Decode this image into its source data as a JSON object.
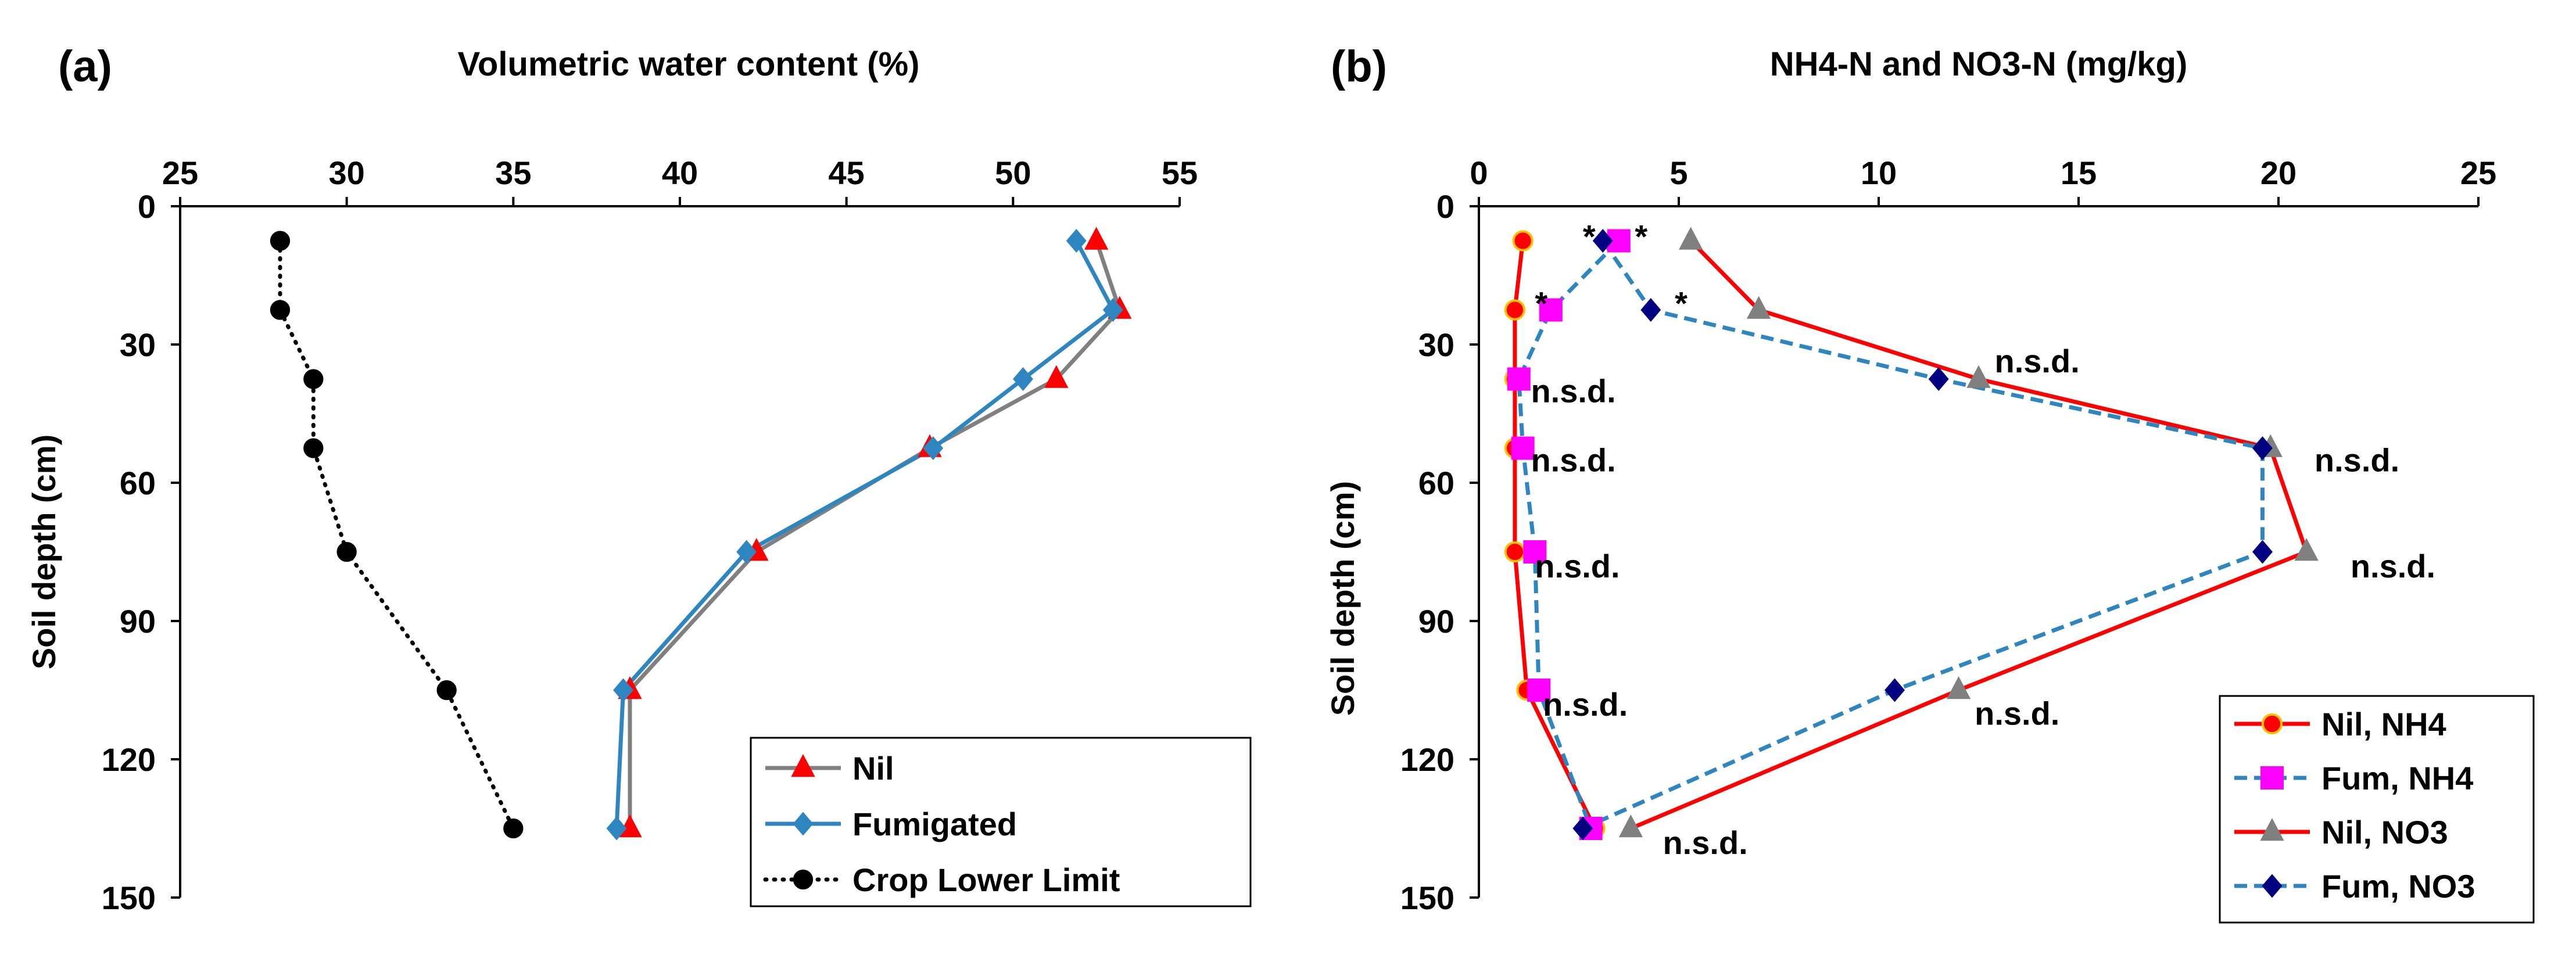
{
  "chart_data": [
    {
      "type": "line",
      "panel_label": "(a)",
      "title": "Volumetric water content (%)",
      "xlabel": "Volumetric water content (%)",
      "ylabel": "Soil depth (cm)",
      "xlim": [
        25,
        55
      ],
      "ylim": [
        0,
        150
      ],
      "x_axis_position": "top",
      "y_inverted": true,
      "xticks": [
        25,
        30,
        35,
        40,
        45,
        50,
        55
      ],
      "yticks": [
        0,
        30,
        60,
        90,
        120,
        150
      ],
      "grid": false,
      "legend_position": "bottom-right",
      "series": [
        {
          "name": "Nil",
          "color": "#808080",
          "marker_color": "#ff0000",
          "marker": "triangle",
          "line": "solid",
          "x": [
            52.5,
            53.2,
            51.3,
            47.5,
            42.3,
            38.5,
            38.5
          ],
          "y": [
            7.5,
            22.5,
            37.5,
            52.5,
            75,
            105,
            135
          ]
        },
        {
          "name": "Fumigated",
          "color": "#2e86c1",
          "marker_color": "#2e86c1",
          "marker": "diamond",
          "line": "solid",
          "x": [
            51.9,
            53.0,
            50.3,
            47.6,
            42.0,
            38.3,
            38.1
          ],
          "y": [
            7.5,
            22.5,
            37.5,
            52.5,
            75,
            105,
            135
          ]
        },
        {
          "name": "Crop Lower Limit",
          "color": "#000000",
          "marker_color": "#000000",
          "marker": "circle",
          "line": "dotted",
          "x": [
            28.0,
            28.0,
            29.0,
            29.0,
            30.0,
            33.0,
            35.0
          ],
          "y": [
            7.5,
            22.5,
            37.5,
            52.5,
            75,
            105,
            135
          ]
        }
      ]
    },
    {
      "type": "line",
      "panel_label": "(b)",
      "title": "NH4-N and NO3-N (mg/kg)",
      "xlabel": "NH4-N and NO3-N (mg/kg)",
      "ylabel": "Soil depth (cm)",
      "xlim": [
        0,
        25
      ],
      "ylim": [
        0,
        150
      ],
      "x_axis_position": "top",
      "y_inverted": true,
      "xticks": [
        0,
        5,
        10,
        15,
        20,
        25
      ],
      "yticks": [
        0,
        30,
        60,
        90,
        120,
        150
      ],
      "grid": false,
      "legend_position": "bottom-right",
      "series": [
        {
          "name": "Nil, NH4",
          "color": "#ff0000",
          "marker_color": "#ff0000",
          "marker_edge": "#ffc000",
          "marker": "circle",
          "line": "solid",
          "x": [
            1.1,
            0.9,
            0.9,
            0.9,
            0.9,
            1.2,
            2.9
          ],
          "y": [
            7.5,
            22.5,
            37.5,
            52.5,
            75,
            105,
            135
          ]
        },
        {
          "name": "Fum, NH4",
          "color": "#2e86c1",
          "marker_color": "#ff00ff",
          "marker": "square",
          "line": "dashed",
          "x": [
            3.5,
            1.8,
            1.0,
            1.1,
            1.4,
            1.5,
            2.8
          ],
          "y": [
            7.5,
            22.5,
            37.5,
            52.5,
            75,
            105,
            135
          ]
        },
        {
          "name": "Nil, NO3",
          "color": "#ff0000",
          "marker_color": "#808080",
          "marker": "triangle",
          "line": "solid",
          "x": [
            5.3,
            7.0,
            12.5,
            19.8,
            20.7,
            12.0,
            3.8
          ],
          "y": [
            7.5,
            22.5,
            37.5,
            52.5,
            75,
            105,
            135
          ]
        },
        {
          "name": "Fum, NO3",
          "color": "#2e86c1",
          "marker_color": "#000080",
          "marker": "diamond",
          "line": "dashed",
          "x": [
            3.1,
            4.3,
            11.5,
            19.6,
            19.6,
            10.4,
            2.6
          ],
          "y": [
            7.5,
            22.5,
            37.5,
            52.5,
            75,
            105,
            135
          ]
        }
      ],
      "annotations": [
        {
          "text": "*",
          "x": 2.6,
          "y": 6.5
        },
        {
          "text": "*",
          "x": 3.9,
          "y": 6.5
        },
        {
          "text": "*",
          "x": 1.4,
          "y": 21
        },
        {
          "text": "*",
          "x": 4.9,
          "y": 21
        },
        {
          "text": "n.s.d.",
          "x": 12.9,
          "y": 33.5
        },
        {
          "text": "n.s.d.",
          "x": 1.3,
          "y": 40
        },
        {
          "text": "n.s.d.",
          "x": 1.3,
          "y": 55
        },
        {
          "text": "n.s.d.",
          "x": 20.9,
          "y": 55
        },
        {
          "text": "n.s.d.",
          "x": 1.4,
          "y": 78
        },
        {
          "text": "n.s.d.",
          "x": 21.8,
          "y": 78
        },
        {
          "text": "n.s.d.",
          "x": 1.6,
          "y": 108
        },
        {
          "text": "n.s.d.",
          "x": 12.4,
          "y": 110
        },
        {
          "text": "n.s.d.",
          "x": 4.6,
          "y": 138
        }
      ]
    }
  ]
}
